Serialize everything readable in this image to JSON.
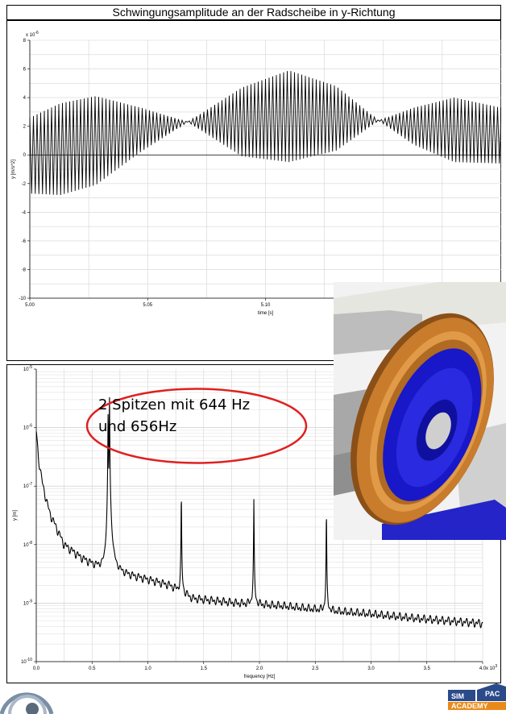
{
  "header": {
    "title": "Schwingungsamplitude an der Radscheibe in y-Richtung"
  },
  "chart_data": [
    {
      "type": "line",
      "title": "Schwingungsamplitude an der Radscheibe in y-Richtung",
      "xlabel": "time [s]",
      "ylabel": "y [m/s^2]",
      "yscale_label": "x 10^-6",
      "xlim": [
        5.0,
        5.2
      ],
      "ylim": [
        -10,
        8
      ],
      "xticks": [
        "5.00",
        "5.05",
        "5.10",
        "5.15"
      ],
      "yticks": [
        "8",
        "6",
        "4",
        "2",
        "0",
        "-2",
        "-4",
        "-6",
        "-8",
        "-10"
      ],
      "grid": true,
      "carrier_frequency_hz": 650,
      "beat_period_s": 0.0833,
      "envelope": {
        "t": [
          5.0,
          5.013,
          5.028,
          5.047,
          5.067,
          5.09,
          5.11,
          5.13,
          5.148,
          5.163,
          5.18,
          5.2,
          5.22,
          5.245,
          5.264,
          5.281,
          5.3
        ],
        "upper": [
          2.6,
          3.6,
          4.1,
          3.3,
          2.3,
          4.7,
          5.9,
          4.8,
          2.4,
          3.3,
          4.0,
          3.3,
          2.5,
          -1.0,
          -3.6,
          -3.0,
          -2.7
        ],
        "lower": [
          -2.7,
          -2.8,
          -2.1,
          0.2,
          2.3,
          -0.1,
          -0.5,
          0.3,
          2.4,
          0.7,
          -0.5,
          -0.6,
          -1.4,
          -5.0,
          -3.6,
          -7.4,
          -8.1
        ]
      }
    },
    {
      "type": "line",
      "xlabel": "frequency [Hz]",
      "ylabel": "y [m]",
      "xscale_label": "x 10^3",
      "xlim": [
        0.0,
        4.0
      ],
      "ylim": [
        1e-10,
        1e-05
      ],
      "yscale": "log",
      "xticks": [
        "0.0",
        "0.5",
        "1.0",
        "1.5",
        "2.0",
        "2.5",
        "3.0",
        "3.5",
        "4.0"
      ],
      "yticks": [
        "10^-5",
        "10^-6",
        "10^-7",
        "10^-8",
        "10^-9",
        "10^-10"
      ],
      "grid": true,
      "baseline": {
        "x": [
          0.0,
          0.02,
          0.06,
          0.12,
          0.25,
          0.4,
          0.6,
          0.8,
          1.0,
          1.2,
          1.4,
          1.8,
          2.2,
          2.6,
          3.0,
          3.4,
          3.8,
          4.0
        ],
        "y": [
          9e-07,
          3e-07,
          1e-07,
          3.5e-08,
          1e-08,
          6e-09,
          3.5e-09,
          3e-09,
          2.5e-09,
          2e-09,
          1.2e-09,
          1e-09,
          9e-10,
          7.5e-10,
          6.5e-10,
          5.5e-10,
          4.8e-10,
          4.5e-10
        ]
      },
      "peaks": [
        {
          "x": 0.644,
          "y": 2.2e-06
        },
        {
          "x": 0.656,
          "y": 3.8e-06
        },
        {
          "x": 1.3,
          "y": 8e-08
        },
        {
          "x": 1.95,
          "y": 6e-08
        },
        {
          "x": 2.6,
          "y": 4e-08
        }
      ],
      "annotation": "2 Spitzen mit 644 Hz\nund 656Hz"
    }
  ],
  "colors": {
    "signal": "#000000",
    "grid": "#c8c8c8",
    "callout": "#e02020",
    "wheel_rim": "#c07828",
    "wheel_disc": "#1a1ad8",
    "rail": "#2020c0"
  },
  "logos": {
    "left": "ring-logo-icon",
    "right": "simpack-academy-logo-icon",
    "right_text_top": "SIM",
    "right_text_side": "PAC",
    "right_text_bottom": "ACADEMY"
  }
}
